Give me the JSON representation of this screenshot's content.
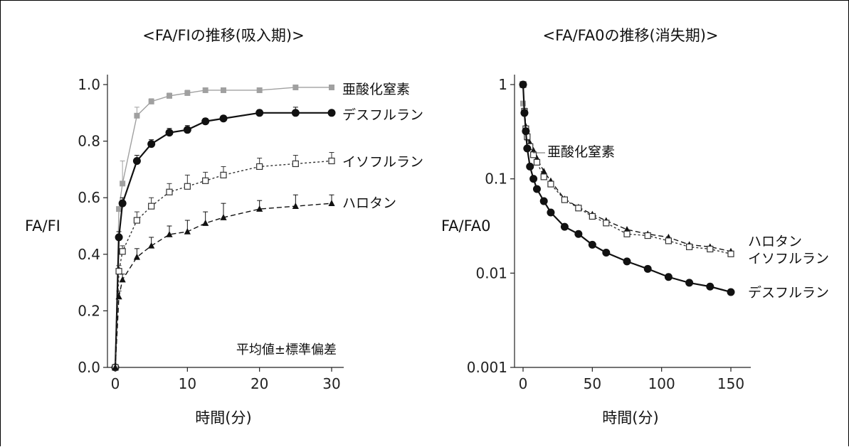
{
  "chart_data": [
    {
      "type": "line",
      "title": "<FA/FIの推移(吸入期)>",
      "xlabel": "時間(分)",
      "ylabel": "FA/FI",
      "xlim": [
        0,
        30
      ],
      "ylim": [
        0,
        1.0
      ],
      "x_ticks": [
        0,
        10,
        20,
        30
      ],
      "x_tick_labels": [
        "0",
        "10",
        "20",
        "30"
      ],
      "y_ticks": [
        0,
        0.2,
        0.4,
        0.6,
        0.8,
        1.0
      ],
      "y_tick_labels": [
        "0.0",
        "0.2",
        "0.4",
        "0.6",
        "0.8",
        "1.0"
      ],
      "y_scale": "linear",
      "grid": false,
      "annotation": "平均値±標準偏差",
      "series": [
        {
          "name": "亜酸化窒素",
          "marker": "filled-square",
          "color": "#a0a0a0",
          "line": "solid",
          "x": [
            0,
            0.5,
            1,
            3,
            5,
            7.5,
            10,
            12.5,
            15,
            20,
            25,
            30
          ],
          "y": [
            0,
            0.56,
            0.65,
            0.89,
            0.94,
            0.96,
            0.97,
            0.98,
            0.98,
            0.98,
            0.99,
            0.99
          ],
          "err": [
            0,
            0,
            0.08,
            0.03,
            0.01,
            0.01,
            0.01,
            0.005,
            0.005,
            0.005,
            0.005,
            0.005
          ]
        },
        {
          "name": "デスフルラン",
          "marker": "filled-circle",
          "color": "#111111",
          "line": "solid",
          "x": [
            0,
            0.5,
            1,
            3,
            5,
            7.5,
            10,
            12.5,
            15,
            20,
            25,
            30
          ],
          "y": [
            0,
            0.46,
            0.58,
            0.73,
            0.79,
            0.83,
            0.84,
            0.87,
            0.88,
            0.9,
            0.9,
            0.9
          ],
          "err": [
            0,
            0.02,
            0.02,
            0.02,
            0.015,
            0.015,
            0.015,
            0.01,
            0.01,
            0.01,
            0.02,
            0.01
          ]
        },
        {
          "name": "イソフルラン",
          "marker": "open-square",
          "color": "#333333",
          "line": "dotted",
          "x": [
            0,
            0.5,
            1,
            3,
            5,
            7.5,
            10,
            12.5,
            15,
            20,
            25,
            30
          ],
          "y": [
            0,
            0.34,
            0.41,
            0.52,
            0.57,
            0.62,
            0.64,
            0.66,
            0.68,
            0.71,
            0.72,
            0.73
          ],
          "err": [
            0,
            0.02,
            0.02,
            0.03,
            0.03,
            0.03,
            0.04,
            0.03,
            0.03,
            0.03,
            0.03,
            0.03
          ]
        },
        {
          "name": "ハロタン",
          "marker": "filled-triangle",
          "color": "#111111",
          "line": "dashed",
          "x": [
            0,
            0.5,
            1,
            3,
            5,
            7.5,
            10,
            12.5,
            15,
            20,
            25,
            30
          ],
          "y": [
            0,
            0.25,
            0.31,
            0.39,
            0.43,
            0.47,
            0.48,
            0.51,
            0.53,
            0.56,
            0.57,
            0.58
          ],
          "err": [
            0,
            0.02,
            0.02,
            0.03,
            0.03,
            0.03,
            0.04,
            0.04,
            0.05,
            0.03,
            0.04,
            0.03
          ]
        }
      ]
    },
    {
      "type": "line",
      "title": "<FA/FA0の推移(消失期)>",
      "xlabel": "時間(分)",
      "ylabel": "FA/FA0",
      "xlim": [
        0,
        150
      ],
      "ylim": [
        0.001,
        1
      ],
      "x_ticks": [
        0,
        50,
        100,
        150
      ],
      "x_tick_labels": [
        "0",
        "50",
        "100",
        "150"
      ],
      "y_ticks": [
        0.001,
        0.01,
        0.1,
        1
      ],
      "y_tick_labels": [
        "0.001",
        "0.01",
        "0.1",
        "1"
      ],
      "y_scale": "log",
      "grid": false,
      "series": [
        {
          "name": "亜酸化窒素",
          "marker": "filled-square",
          "color": "#a0a0a0",
          "line": "solid",
          "x": [
            0,
            1,
            2,
            3,
            5
          ],
          "y": [
            0.63,
            0.53,
            0.32,
            0.27,
            0.22
          ]
        },
        {
          "name": "ハロタン",
          "marker": "filled-triangle",
          "color": "#111111",
          "line": "dashed",
          "x": [
            0,
            1,
            2,
            3,
            5,
            7.5,
            10,
            15,
            20,
            30,
            40,
            50,
            60,
            75,
            90,
            105,
            120,
            135,
            150
          ],
          "y": [
            1,
            0.53,
            0.36,
            0.3,
            0.24,
            0.2,
            0.165,
            0.12,
            0.095,
            0.061,
            0.05,
            0.042,
            0.036,
            0.029,
            0.026,
            0.024,
            0.02,
            0.019,
            0.017
          ]
        },
        {
          "name": "イソフルラン",
          "marker": "open-square",
          "color": "#333333",
          "line": "dotted",
          "x": [
            0,
            1,
            2,
            3,
            5,
            7.5,
            10,
            15,
            20,
            30,
            40,
            50,
            60,
            75,
            90,
            105,
            120,
            135,
            150
          ],
          "y": [
            1,
            0.52,
            0.34,
            0.28,
            0.22,
            0.18,
            0.15,
            0.105,
            0.088,
            0.06,
            0.049,
            0.04,
            0.034,
            0.026,
            0.025,
            0.022,
            0.019,
            0.018,
            0.016
          ]
        },
        {
          "name": "デスフルラン",
          "marker": "filled-circle",
          "color": "#111111",
          "line": "solid",
          "x": [
            0,
            1,
            2,
            3,
            5,
            7.5,
            10,
            15,
            20,
            30,
            40,
            50,
            60,
            75,
            90,
            105,
            120,
            135,
            150
          ],
          "y": [
            1,
            0.5,
            0.32,
            0.21,
            0.135,
            0.1,
            0.078,
            0.058,
            0.044,
            0.031,
            0.026,
            0.02,
            0.0165,
            0.0133,
            0.0111,
            0.0091,
            0.0079,
            0.0072,
            0.0063
          ]
        }
      ]
    }
  ]
}
